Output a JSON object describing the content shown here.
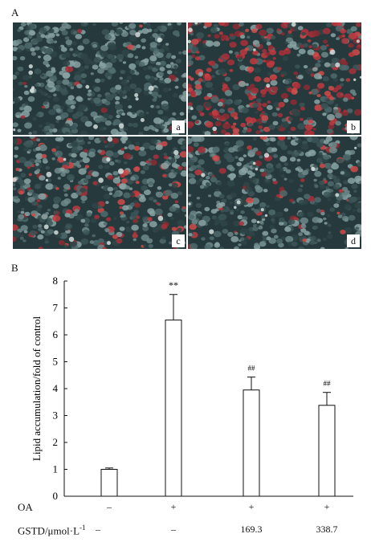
{
  "panel_a": {
    "label": "A",
    "images": [
      {
        "label": "a",
        "red_density": 0.02
      },
      {
        "label": "b",
        "red_density": 0.55
      },
      {
        "label": "c",
        "red_density": 0.22
      },
      {
        "label": "d",
        "red_density": 0.12
      }
    ]
  },
  "panel_b": {
    "label": "B"
  },
  "chart_data": {
    "type": "bar",
    "ylabel": "Lipid accumulation/fold of control",
    "ylim": [
      0,
      8
    ],
    "yticks": [
      "0",
      "1",
      "2",
      "3",
      "4",
      "5",
      "6",
      "7",
      "8"
    ],
    "values": [
      1.0,
      6.55,
      3.95,
      3.38
    ],
    "errors": [
      0.05,
      0.95,
      0.48,
      0.48
    ],
    "annotations": [
      "",
      "**",
      "##",
      "##"
    ]
  },
  "conditions": {
    "oa_label": "OA",
    "oa_values": [
      "–",
      "+",
      "+",
      "+"
    ],
    "gstd_label": "GSTD/μmol·L",
    "gstd_superscript": "-1",
    "gstd_values": [
      "–",
      "–",
      "169.3",
      "338.7"
    ]
  }
}
